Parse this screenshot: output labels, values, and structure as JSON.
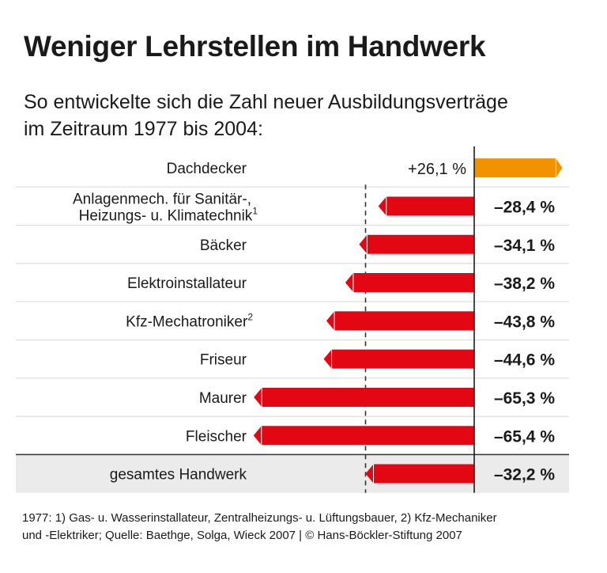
{
  "title": "Weniger Lehrstellen im Handwerk",
  "subtitle_line1": "So entwickelte sich die Zahl neuer Ausbildungsverträge",
  "subtitle_line2": "im Zeitraum 1977 bis 2004:",
  "footnote_line1": "1977: 1) Gas- u. Wasserinstallateur, Zentralheizungs- u. Lüftungsbauer, 2) Kfz-Mechaniker",
  "footnote_line2": "und -Elektriker; Quelle: Baethge, Solga, Wieck 2007 | © Hans-Böckler-Stiftung 2007",
  "chart_data": {
    "type": "bar",
    "orientation": "horizontal",
    "categories": [
      [
        "Dachdecker"
      ],
      [
        "Anlagenmech. für Sanitär-,",
        "Heizungs- u. Klimatechnik",
        "1"
      ],
      [
        "Bäcker"
      ],
      [
        "Elektroinstallateur"
      ],
      [
        "Kfz-Mechatroniker",
        "2"
      ],
      [
        "Friseur"
      ],
      [
        "Maurer"
      ],
      [
        "Fleischer"
      ],
      [
        "gesamtes Handwerk"
      ]
    ],
    "values": [
      26.1,
      -28.4,
      -34.1,
      -38.2,
      -43.8,
      -44.6,
      -65.3,
      -65.4,
      -32.2
    ],
    "labels": [
      "+26,1 %",
      "–28,4 %",
      "–34,1 %",
      "–38,2 %",
      "–43,8 %",
      "–44,6 %",
      "–65,3 %",
      "–65,4 %",
      "–32,2 %"
    ],
    "reference_line": -32.2,
    "unit": "%",
    "colors": {
      "positive": "#f39200",
      "negative": "#e30613",
      "total_row_bg": "#ebebeb"
    }
  }
}
